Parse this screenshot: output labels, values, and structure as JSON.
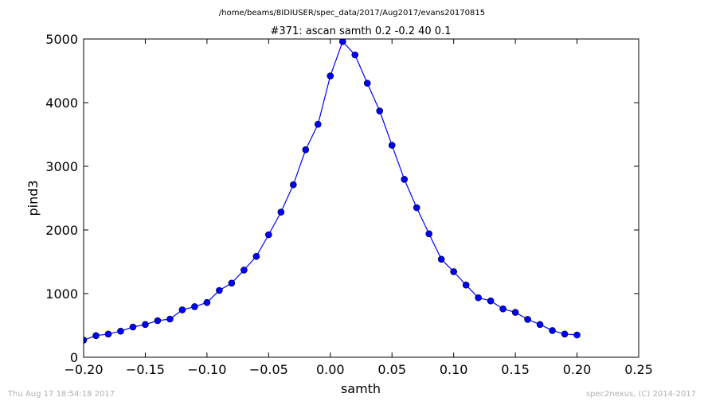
{
  "header": {
    "path": "/home/beams/8IDIUSER/spec_data/2017/Aug2017/evans20170815"
  },
  "footer": {
    "timestamp": "Thu Aug 17 18:54:18 2017",
    "credit": "spec2nexus, (C) 2014-2017"
  },
  "colors": {
    "series": "#0000ff",
    "axes": "#000000",
    "footer_text": "#b0b0b0"
  },
  "chart_data": {
    "type": "line",
    "title": "#371: ascan  samth 0.2 -0.2  40 0.1",
    "xlabel": "samth",
    "ylabel": "pind3",
    "xlim": [
      -0.2,
      0.25
    ],
    "ylim": [
      0,
      5000
    ],
    "grid": false,
    "marker": "circle",
    "xticks": [
      -0.2,
      -0.15,
      -0.1,
      -0.05,
      0.0,
      0.05,
      0.1,
      0.15,
      0.2,
      0.25
    ],
    "xtick_labels": [
      "−0.20",
      "−0.15",
      "−0.10",
      "−0.05",
      "0.00",
      "0.05",
      "0.10",
      "0.15",
      "0.20",
      "0.25"
    ],
    "yticks": [
      0,
      1000,
      2000,
      3000,
      4000,
      5000
    ],
    "ytick_labels": [
      "0",
      "1000",
      "2000",
      "3000",
      "4000",
      "5000"
    ],
    "x": [
      -0.2,
      -0.19,
      -0.18,
      -0.17,
      -0.16,
      -0.15,
      -0.14,
      -0.13,
      -0.12,
      -0.11,
      -0.1,
      -0.09,
      -0.08,
      -0.07,
      -0.06,
      -0.05,
      -0.04,
      -0.03,
      -0.02,
      -0.01,
      0.0,
      0.01,
      0.02,
      0.03,
      0.04,
      0.05,
      0.06,
      0.07,
      0.08,
      0.09,
      0.1,
      0.11,
      0.12,
      0.13,
      0.14,
      0.15,
      0.16,
      0.17,
      0.18,
      0.19,
      0.2
    ],
    "y": [
      270,
      340,
      365,
      410,
      475,
      515,
      575,
      600,
      745,
      795,
      860,
      1050,
      1165,
      1370,
      1585,
      1925,
      2280,
      2710,
      3260,
      3660,
      4420,
      4960,
      4750,
      4305,
      3870,
      3330,
      2795,
      2350,
      1940,
      1540,
      1345,
      1135,
      935,
      885,
      760,
      705,
      595,
      515,
      420,
      365,
      350
    ]
  }
}
